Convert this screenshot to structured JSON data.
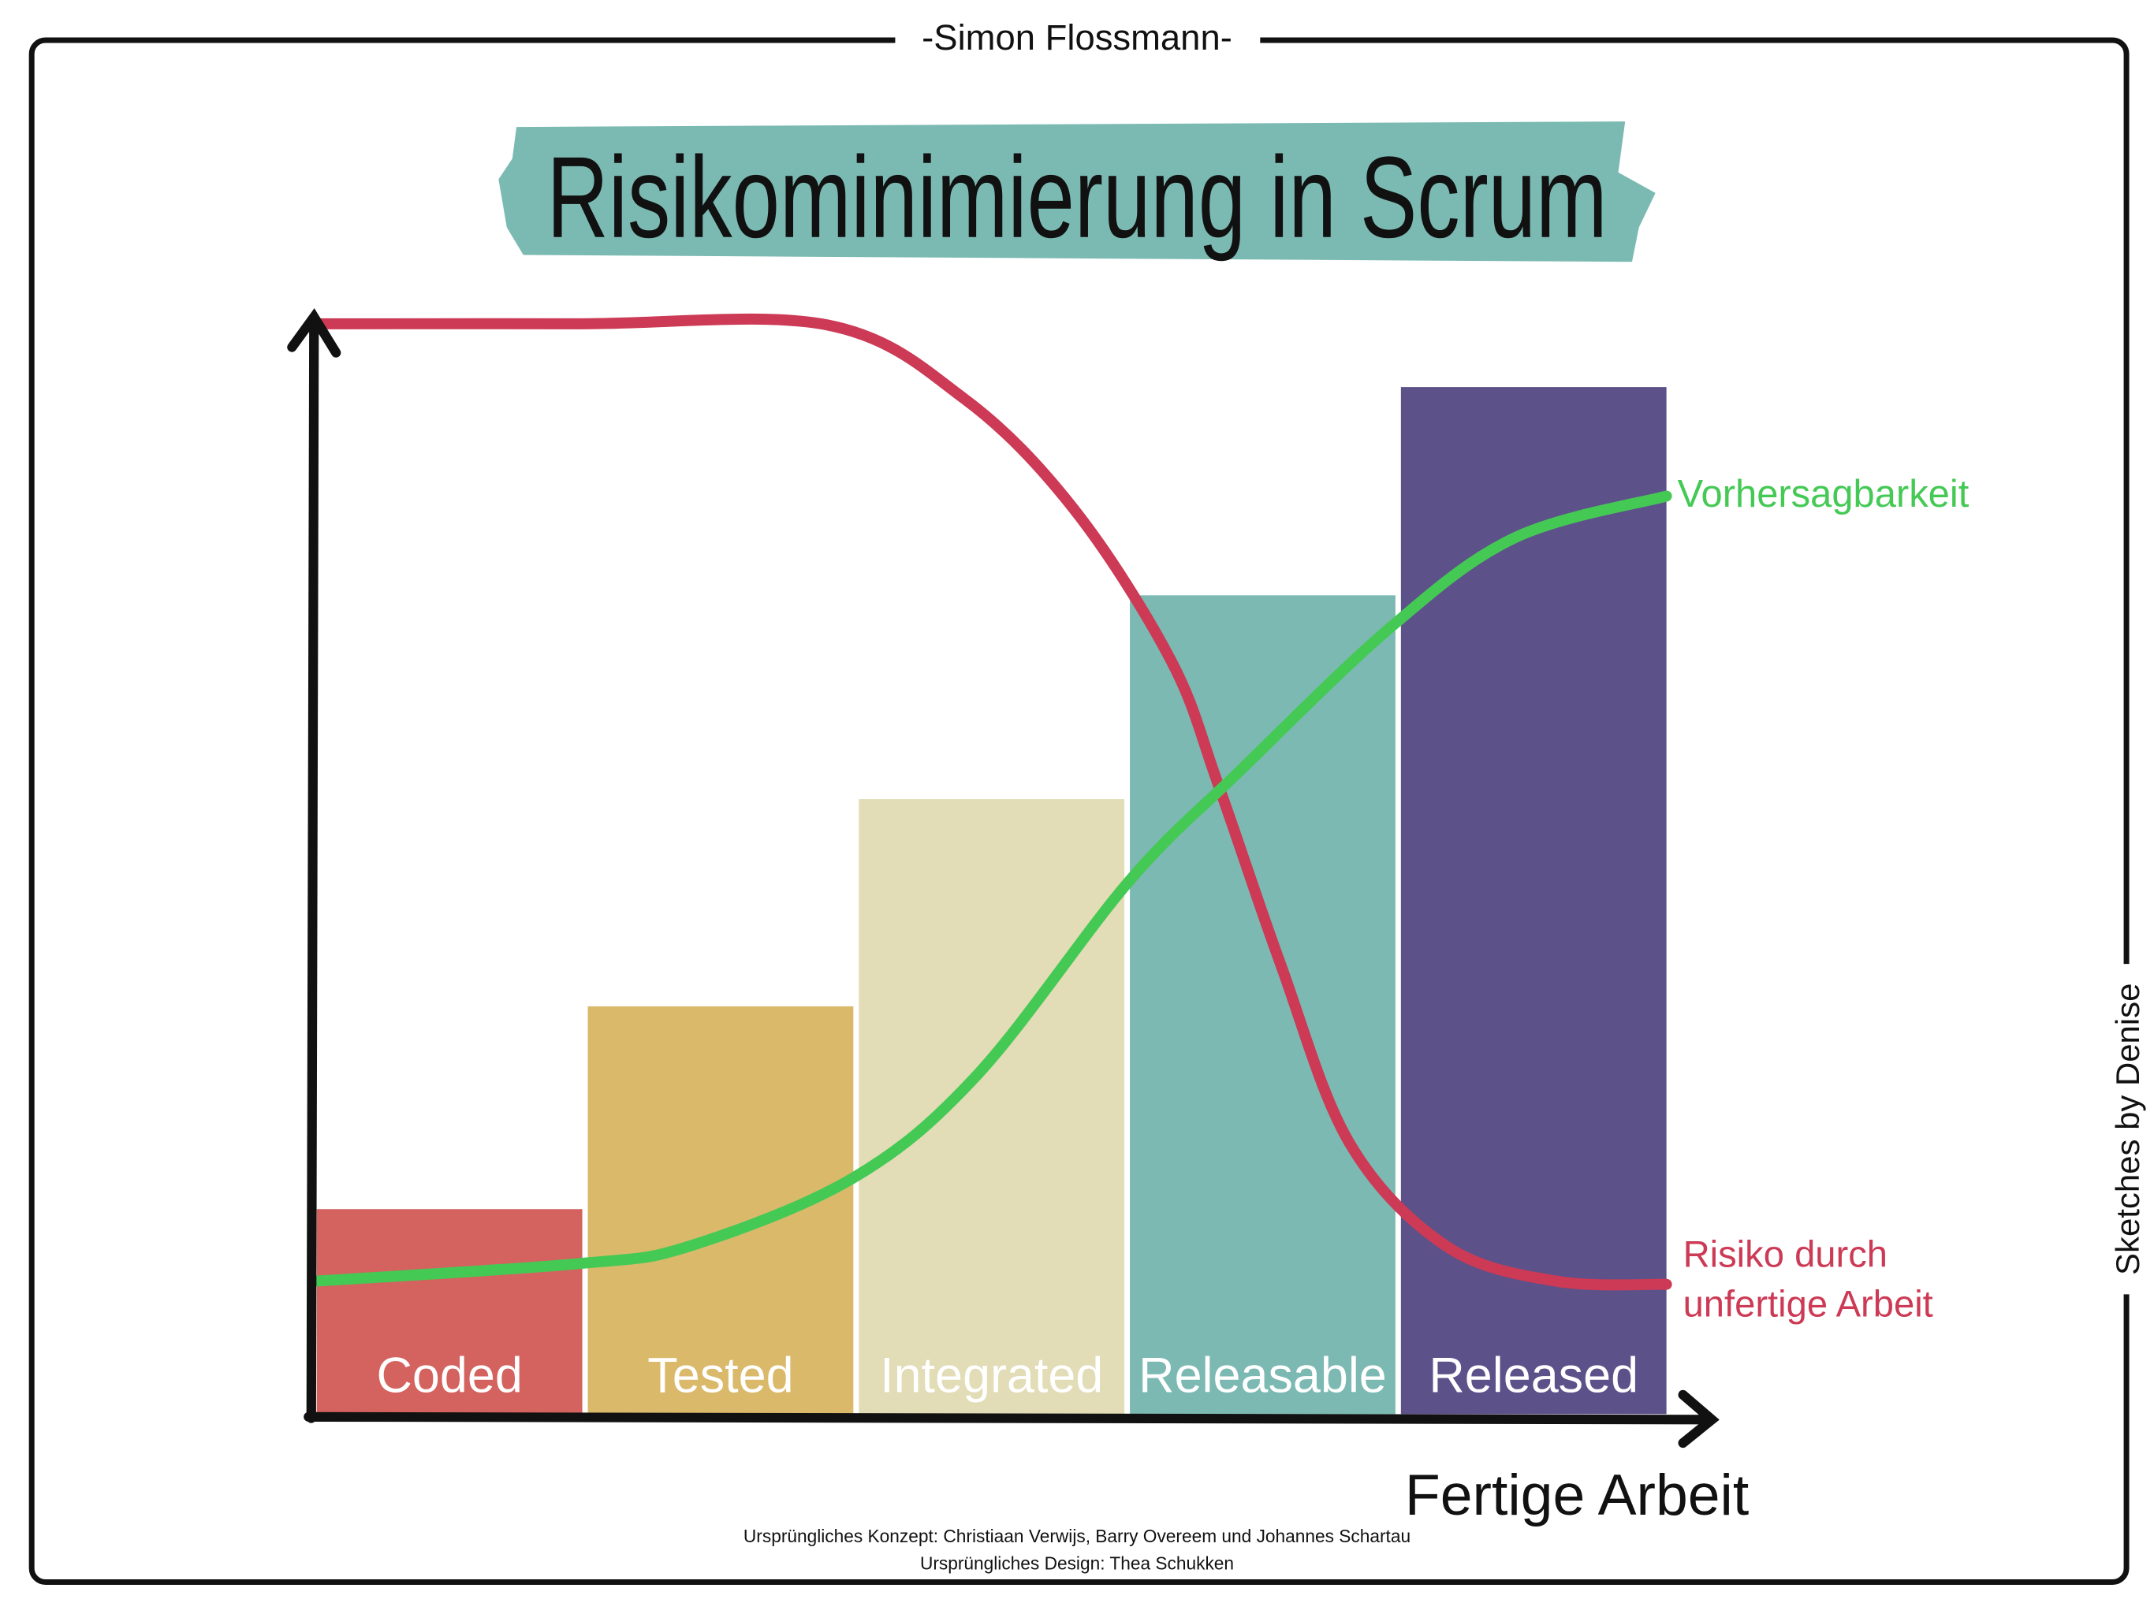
{
  "author": "-Simon Flossmann-",
  "side_credit": "Sketches by Denise",
  "credits": {
    "concept": "Ursprüngliches Konzept: Christiaan Verwijs, Barry Overeem und Johannes Schartau",
    "design": "Ursprüngliches Design: Thea Schukken"
  },
  "colors": {
    "banner": "#7bbab2",
    "risk": "#cc3a55",
    "predictability": "#45c955",
    "axis": "#111111"
  },
  "chart_data": {
    "type": "bar",
    "title": "Risikominimierung in Scrum",
    "xlabel": "Fertige Arbeit",
    "ylabel": "",
    "ylim": [
      0,
      100
    ],
    "grid": false,
    "categories": [
      "Coded",
      "Tested",
      "Integrated",
      "Releasable",
      "Released"
    ],
    "values": [
      18.8,
      37.4,
      56.4,
      75.1,
      94.2
    ],
    "bar_colors": [
      "#d4625e",
      "#dab96b",
      "#e2dcb7",
      "#7bb9b2",
      "#5d5189"
    ],
    "lines": [
      {
        "name": "Risiko durch unfertige Arbeit",
        "label_lines": [
          "Risiko durch",
          "unfertige Arbeit"
        ],
        "color": "#cc3a55",
        "x": [
          0,
          19.4,
          37.8,
          48,
          56.1,
          63.3,
          66.8,
          71.4,
          76.5,
          83.7,
          91.8,
          100
        ],
        "y": [
          100,
          100,
          99.9,
          93.1,
          83,
          69.1,
          57.7,
          41.3,
          24.9,
          15.4,
          12.2,
          11.9
        ]
      },
      {
        "name": "Vorhersagbarkeit",
        "label_lines": [
          "Vorhersagbarkeit"
        ],
        "color": "#45c955",
        "x": [
          0,
          19.4,
          27.6,
          39.8,
          49,
          60.2,
          68.4,
          79.6,
          88.8,
          100
        ],
        "y": [
          12.2,
          13.8,
          15.4,
          21.7,
          31.2,
          48.9,
          59,
          72.2,
          80.4,
          84.2
        ]
      }
    ]
  }
}
